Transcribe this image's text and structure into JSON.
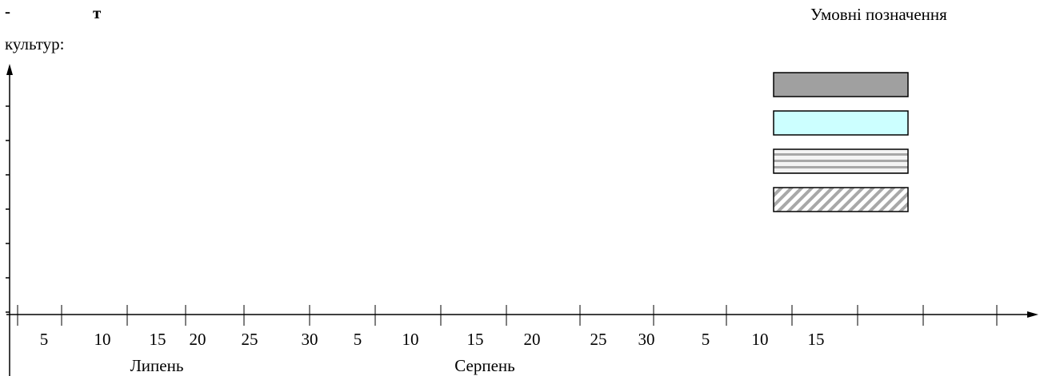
{
  "heading": {
    "dash": "-",
    "letter": "т",
    "subtitle": "культур:",
    "legend_title": "Умовні позначення"
  },
  "chart_data": {
    "type": "bar",
    "title": "",
    "xlabel": "",
    "ylabel": "",
    "x_tick_labels": [
      "5",
      "10",
      "15",
      "20",
      "25",
      "30",
      "5",
      "10",
      "15",
      "20",
      "25",
      "30",
      "5",
      "10",
      "15"
    ],
    "months": [
      "Липень",
      "Серпень"
    ],
    "y_tick_count": 7,
    "series": [],
    "legend": {
      "placement": "top-right",
      "swatches": [
        {
          "fill": "#a0a0a0",
          "pattern": "solid"
        },
        {
          "fill": "#ccffff",
          "pattern": "solid"
        },
        {
          "fill": "#e0e0e0",
          "pattern": "horizontal-stripes"
        },
        {
          "fill": "#ffffff",
          "pattern": "diagonal-hatch"
        }
      ]
    }
  }
}
